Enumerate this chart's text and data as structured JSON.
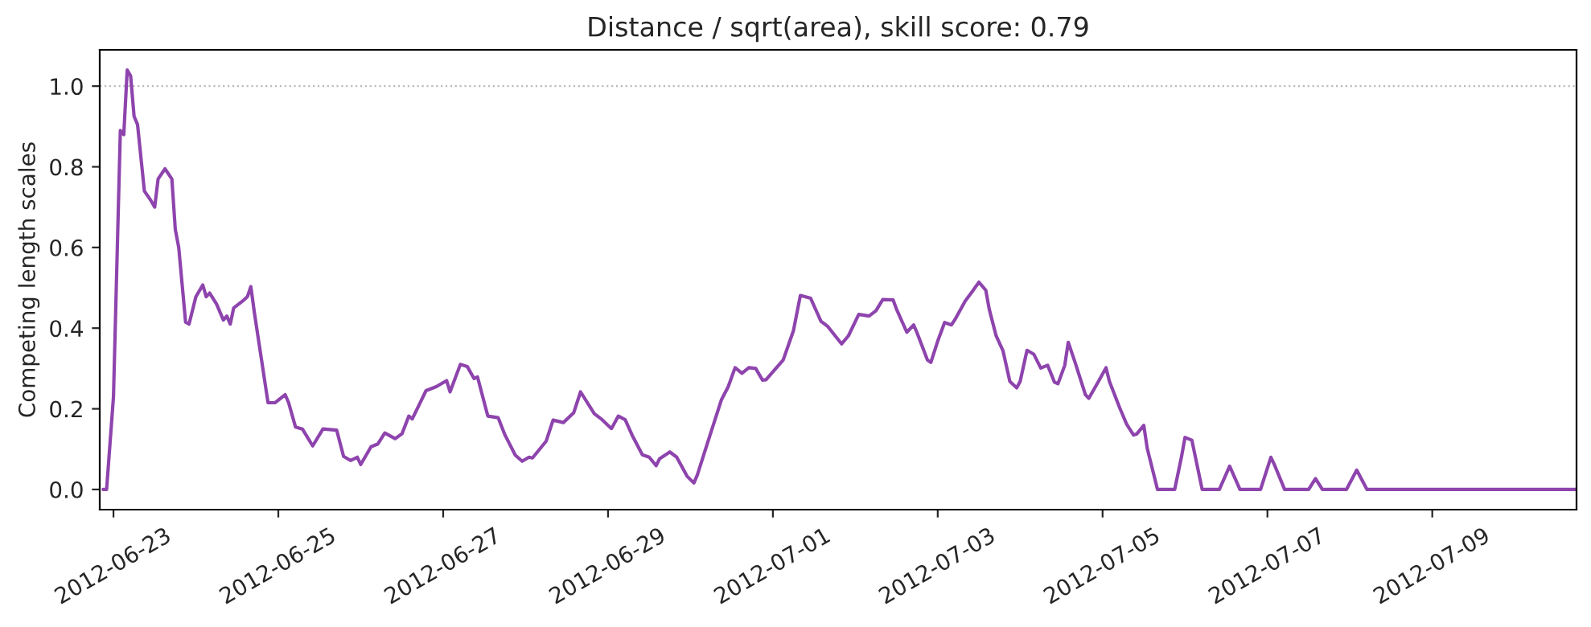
{
  "chart_data": {
    "type": "line",
    "title": "Distance / sqrt(area), skill score: 0.79",
    "ylabel": "Competing length scales",
    "x": [
      "2012-06-22T21:00",
      "2012-06-22T22:00",
      "2012-06-23T00:00",
      "2012-06-23T02:00",
      "2012-06-23T03:00",
      "2012-06-23T04:00",
      "2012-06-23T05:00",
      "2012-06-23T06:00",
      "2012-06-23T07:00",
      "2012-06-23T09:00",
      "2012-06-23T11:00",
      "2012-06-23T12:00",
      "2012-06-23T13:00",
      "2012-06-23T15:00",
      "2012-06-23T17:00",
      "2012-06-23T18:00",
      "2012-06-23T19:00",
      "2012-06-23T21:00",
      "2012-06-23T22:00",
      "2012-06-24T00:00",
      "2012-06-24T02:00",
      "2012-06-24T03:00",
      "2012-06-24T04:00",
      "2012-06-24T06:00",
      "2012-06-24T08:00",
      "2012-06-24T09:00",
      "2012-06-24T10:00",
      "2012-06-24T11:00",
      "2012-06-24T14:00",
      "2012-06-24T15:00",
      "2012-06-24T16:00",
      "2012-06-24T17:00",
      "2012-06-24T21:00",
      "2012-06-24T23:00",
      "2012-06-25T02:00",
      "2012-06-25T03:00",
      "2012-06-25T05:00",
      "2012-06-25T07:00",
      "2012-06-25T09:00",
      "2012-06-25T10:00",
      "2012-06-25T13:00",
      "2012-06-25T17:00",
      "2012-06-25T19:00",
      "2012-06-25T21:00",
      "2012-06-25T23:00",
      "2012-06-26T00:00",
      "2012-06-26T03:00",
      "2012-06-26T05:00",
      "2012-06-26T07:00",
      "2012-06-26T10:00",
      "2012-06-26T12:00",
      "2012-06-26T14:00",
      "2012-06-26T15:00",
      "2012-06-26T17:00",
      "2012-06-26T19:00",
      "2012-06-26T22:00",
      "2012-06-27T01:00",
      "2012-06-27T02:00",
      "2012-06-27T05:00",
      "2012-06-27T07:00",
      "2012-06-27T09:00",
      "2012-06-27T10:00",
      "2012-06-27T13:00",
      "2012-06-27T16:00",
      "2012-06-27T18:00",
      "2012-06-27T21:00",
      "2012-06-27T23:00",
      "2012-06-28T01:00",
      "2012-06-28T02:00",
      "2012-06-28T06:00",
      "2012-06-28T08:00",
      "2012-06-28T11:00",
      "2012-06-28T14:00",
      "2012-06-28T16:00",
      "2012-06-28T20:00",
      "2012-06-28T22:00",
      "2012-06-29T01:00",
      "2012-06-29T03:00",
      "2012-06-29T05:00",
      "2012-06-29T07:00",
      "2012-06-29T10:00",
      "2012-06-29T12:00",
      "2012-06-29T14:00",
      "2012-06-29T15:00",
      "2012-06-29T18:00",
      "2012-06-29T20:00",
      "2012-06-29T23:00",
      "2012-06-30T01:00",
      "2012-06-30T02:00",
      "2012-06-30T05:00",
      "2012-06-30T09:00",
      "2012-06-30T11:00",
      "2012-06-30T13:00",
      "2012-06-30T15:00",
      "2012-06-30T17:00",
      "2012-06-30T19:00",
      "2012-06-30T21:00",
      "2012-06-30T22:00",
      "2012-07-01T03:00",
      "2012-07-01T06:00",
      "2012-07-01T08:00",
      "2012-07-01T11:00",
      "2012-07-01T14:00",
      "2012-07-01T16:00",
      "2012-07-01T20:00",
      "2012-07-01T22:00",
      "2012-07-02T01:00",
      "2012-07-02T04:00",
      "2012-07-02T06:00",
      "2012-07-02T08:00",
      "2012-07-02T11:00",
      "2012-07-02T12:00",
      "2012-07-02T15:00",
      "2012-07-02T17:00",
      "2012-07-02T18:00",
      "2012-07-02T21:00",
      "2012-07-02T22:00",
      "2012-07-03T00:00",
      "2012-07-03T02:00",
      "2012-07-03T04:00",
      "2012-07-03T05:00",
      "2012-07-03T08:00",
      "2012-07-03T10:00",
      "2012-07-03T12:00",
      "2012-07-03T14:00",
      "2012-07-03T15:00",
      "2012-07-03T17:00",
      "2012-07-03T19:00",
      "2012-07-03T21:00",
      "2012-07-03T23:00",
      "2012-07-04T00:00",
      "2012-07-04T02:00",
      "2012-07-04T04:00",
      "2012-07-04T06:00",
      "2012-07-04T08:00",
      "2012-07-04T10:00",
      "2012-07-04T11:00",
      "2012-07-04T13:00",
      "2012-07-04T14:00",
      "2012-07-04T16:00",
      "2012-07-04T19:00",
      "2012-07-04T20:00",
      "2012-07-04T23:00",
      "2012-07-05T01:00",
      "2012-07-05T02:00",
      "2012-07-05T05:00",
      "2012-07-05T07:00",
      "2012-07-05T09:00",
      "2012-07-05T10:00",
      "2012-07-05T12:00",
      "2012-07-05T13:00",
      "2012-07-05T16:00",
      "2012-07-05T21:00",
      "2012-07-05T23:00",
      "2012-07-06T00:00",
      "2012-07-06T02:00",
      "2012-07-06T05:00",
      "2012-07-06T10:00",
      "2012-07-06T13:00",
      "2012-07-06T16:00",
      "2012-07-06T22:00",
      "2012-07-07T01:00",
      "2012-07-07T02:00",
      "2012-07-07T05:00",
      "2012-07-07T12:00",
      "2012-07-07T14:00",
      "2012-07-07T16:00",
      "2012-07-07T23:00",
      "2012-07-08T02:00",
      "2012-07-08T05:00",
      "2012-07-10T18:00"
    ],
    "series": [
      {
        "color": "#8e44ad",
        "values": [
          0,
          0,
          0.23,
          0.89,
          0.88,
          1.04,
          1.025,
          0.925,
          0.905,
          0.74,
          0.715,
          0.7,
          0.77,
          0.795,
          0.77,
          0.645,
          0.6,
          0.415,
          0.41,
          0.478,
          0.507,
          0.478,
          0.487,
          0.46,
          0.42,
          0.43,
          0.41,
          0.45,
          0.47,
          0.478,
          0.503,
          0.44,
          0.215,
          0.215,
          0.235,
          0.215,
          0.155,
          0.15,
          0.122,
          0.108,
          0.15,
          0.147,
          0.082,
          0.072,
          0.08,
          0.062,
          0.106,
          0.113,
          0.14,
          0.126,
          0.138,
          0.182,
          0.175,
          0.21,
          0.245,
          0.255,
          0.27,
          0.242,
          0.31,
          0.305,
          0.275,
          0.279,
          0.182,
          0.178,
          0.135,
          0.085,
          0.07,
          0.08,
          0.078,
          0.12,
          0.172,
          0.166,
          0.19,
          0.242,
          0.188,
          0.175,
          0.151,
          0.182,
          0.173,
          0.135,
          0.086,
          0.08,
          0.059,
          0.076,
          0.093,
          0.08,
          0.033,
          0.016,
          0.036,
          0.116,
          0.222,
          0.255,
          0.302,
          0.288,
          0.302,
          0.3,
          0.271,
          0.272,
          0.321,
          0.394,
          0.481,
          0.474,
          0.417,
          0.404,
          0.361,
          0.381,
          0.434,
          0.43,
          0.443,
          0.471,
          0.47,
          0.447,
          0.39,
          0.408,
          0.388,
          0.321,
          0.315,
          0.368,
          0.414,
          0.408,
          0.421,
          0.467,
          0.49,
          0.514,
          0.494,
          0.447,
          0.381,
          0.344,
          0.268,
          0.252,
          0.268,
          0.345,
          0.335,
          0.301,
          0.308,
          0.266,
          0.262,
          0.308,
          0.365,
          0.315,
          0.235,
          0.226,
          0.271,
          0.302,
          0.268,
          0.202,
          0.162,
          0.135,
          0.138,
          0.159,
          0.102,
          0,
          0,
          0.082,
          0.129,
          0.122,
          0,
          0,
          0.058,
          0,
          0,
          0.08,
          0.062,
          0,
          0,
          0.027,
          0,
          0,
          0.048,
          0,
          0
        ]
      }
    ],
    "xlim": [
      "2012-06-22T20:00",
      "2012-07-10T18:00"
    ],
    "xticks": [
      "2012-06-23",
      "2012-06-25",
      "2012-06-27",
      "2012-06-29",
      "2012-07-01",
      "2012-07-03",
      "2012-07-05",
      "2012-07-07",
      "2012-07-09"
    ],
    "ylim": [
      -0.05,
      1.09
    ],
    "yticks": [
      {
        "value": 0,
        "label": "0.0"
      },
      {
        "value": 0.2,
        "label": "0.2"
      },
      {
        "value": 0.4,
        "label": "0.4"
      },
      {
        "value": 0.6,
        "label": "0.6"
      },
      {
        "value": 0.8,
        "label": "0.8"
      },
      {
        "value": 1,
        "label": "1.0"
      }
    ],
    "ref_lines": [
      {
        "axis": "y",
        "value": 1,
        "color": "#bbbbbb",
        "line_style": "dotted"
      }
    ],
    "grid": false
  }
}
